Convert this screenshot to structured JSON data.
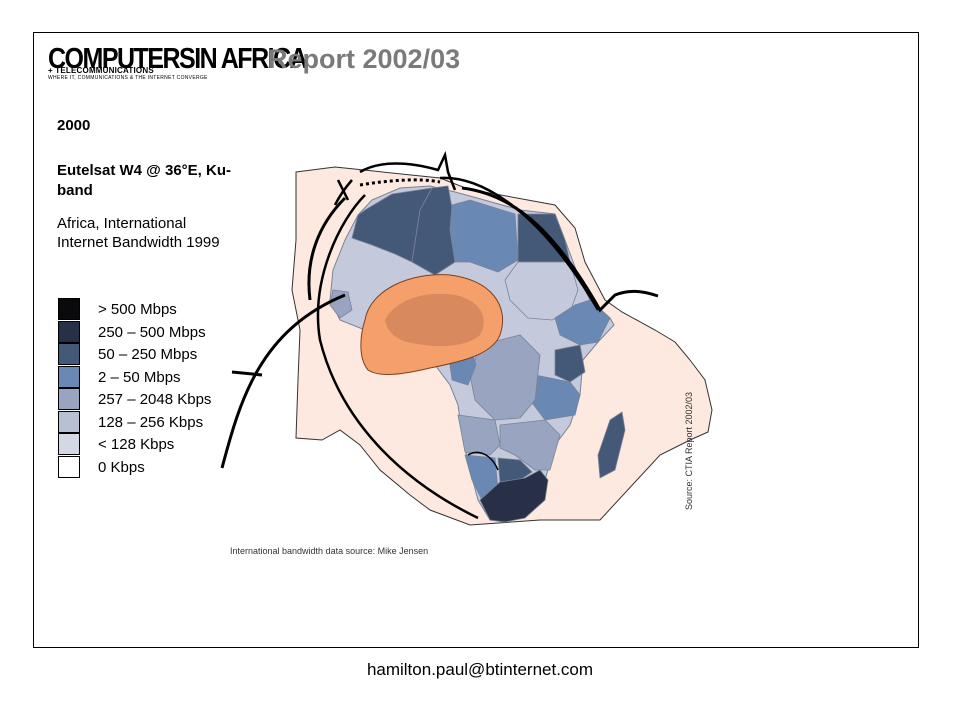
{
  "header": {
    "logo_main": "COMPUTERSIN AFRICA",
    "logo_sub1": "+ TELECOMMUNICATIONS",
    "logo_sub2": "WHERE IT, COMMUNICATIONS & THE INTERNET CONVERGE",
    "report_title": "Report 2002/03"
  },
  "info": {
    "year": "2000",
    "satellite": "Eutelsat W4 @ 36°E, Ku-band",
    "map_title": "Africa, International Internet Bandwidth 1999"
  },
  "legend": [
    {
      "label": "> 500 Mbps",
      "color": "#0a0a0c"
    },
    {
      "label": "250 – 500 Mbps",
      "color": "#283048"
    },
    {
      "label": "50 – 250 Mbps",
      "color": "#445878"
    },
    {
      "label": "2 – 50 Mbps",
      "color": "#6a88b4"
    },
    {
      "label": "257 – 2048 Kbps",
      "color": "#98a4c0"
    },
    {
      "label": "128 – 256 Kbps",
      "color": "#b8c0d4"
    },
    {
      "label": "< 128 Kbps",
      "color": "#d2d8e4"
    },
    {
      "label": "0 Kbps",
      "color": "#ffffff"
    }
  ],
  "map": {
    "background_color": "#fde9df",
    "footprint_color": "#f5a06a",
    "bandwidth_source": "International bandwidth data source: Mike Jensen",
    "side_source": "Source: CTIA Report 2002/03"
  },
  "footer": {
    "email": "hamilton.paul@btinternet.com"
  }
}
